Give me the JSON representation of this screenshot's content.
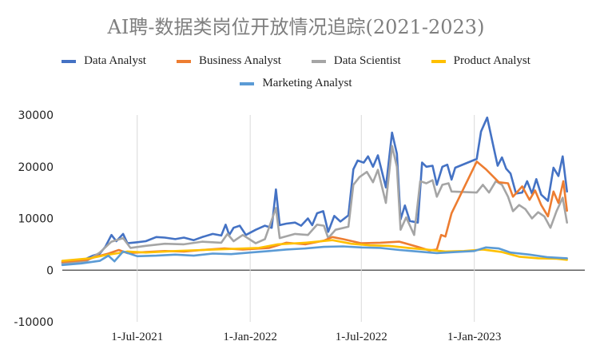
{
  "chart_data": {
    "type": "line",
    "title": "AI聘-数据类岗位开放情况追踪(2021-2023)",
    "xlabel": "",
    "ylabel": "",
    "ylim": [
      -10000,
      30000
    ],
    "yticks": [
      "30000",
      "20000",
      "10000",
      "0",
      "-10000"
    ],
    "xticks": [
      "1-Jul-2021",
      "1-Jan-2022",
      "1-Jul-2022",
      "1-Jan-2023"
    ],
    "x_start": "2021-03-01",
    "x_end": "2023-06-30",
    "xtick_dates": [
      "2021-07-01",
      "2022-01-01",
      "2022-07-01",
      "2023-01-01"
    ],
    "grid": true,
    "legend_position": "top",
    "series": [
      {
        "name": "Data Analyst",
        "color": "#4472c4",
        "points": [
          [
            "2021-03-01",
            1400
          ],
          [
            "2021-03-20",
            1700
          ],
          [
            "2021-04-05",
            2000
          ],
          [
            "2021-04-20",
            2800
          ],
          [
            "2021-05-01",
            3200
          ],
          [
            "2021-05-10",
            4500
          ],
          [
            "2021-05-20",
            6800
          ],
          [
            "2021-05-28",
            5600
          ],
          [
            "2021-06-08",
            7000
          ],
          [
            "2021-06-15",
            5200
          ],
          [
            "2021-07-01",
            5400
          ],
          [
            "2021-07-15",
            5600
          ],
          [
            "2021-08-01",
            6400
          ],
          [
            "2021-08-15",
            6300
          ],
          [
            "2021-09-01",
            6000
          ],
          [
            "2021-09-15",
            6300
          ],
          [
            "2021-10-01",
            5800
          ],
          [
            "2021-10-15",
            6400
          ],
          [
            "2021-11-01",
            7000
          ],
          [
            "2021-11-15",
            6700
          ],
          [
            "2021-11-22",
            8800
          ],
          [
            "2021-11-28",
            6800
          ],
          [
            "2021-12-05",
            8200
          ],
          [
            "2021-12-15",
            8600
          ],
          [
            "2021-12-25",
            6800
          ],
          [
            "2022-01-10",
            7800
          ],
          [
            "2022-01-25",
            8600
          ],
          [
            "2022-02-05",
            8200
          ],
          [
            "2022-02-12",
            15600
          ],
          [
            "2022-02-18",
            8700
          ],
          [
            "2022-03-01",
            9000
          ],
          [
            "2022-03-15",
            9200
          ],
          [
            "2022-03-25",
            8600
          ],
          [
            "2022-04-05",
            10000
          ],
          [
            "2022-04-12",
            8700
          ],
          [
            "2022-04-20",
            11000
          ],
          [
            "2022-04-30",
            11400
          ],
          [
            "2022-05-08",
            7400
          ],
          [
            "2022-05-18",
            10500
          ],
          [
            "2022-05-28",
            9400
          ],
          [
            "2022-06-10",
            10600
          ],
          [
            "2022-06-18",
            19500
          ],
          [
            "2022-06-25",
            21200
          ],
          [
            "2022-07-05",
            20800
          ],
          [
            "2022-07-12",
            22000
          ],
          [
            "2022-07-20",
            20000
          ],
          [
            "2022-07-28",
            22200
          ],
          [
            "2022-08-10",
            16000
          ],
          [
            "2022-08-20",
            26600
          ],
          [
            "2022-08-28",
            22500
          ],
          [
            "2022-09-03",
            9800
          ],
          [
            "2022-09-10",
            12500
          ],
          [
            "2022-09-18",
            9500
          ],
          [
            "2022-10-01",
            9200
          ],
          [
            "2022-10-08",
            20800
          ],
          [
            "2022-10-15",
            20000
          ],
          [
            "2022-10-25",
            20200
          ],
          [
            "2022-11-01",
            16500
          ],
          [
            "2022-11-10",
            20000
          ],
          [
            "2022-11-18",
            20400
          ],
          [
            "2022-11-25",
            17500
          ],
          [
            "2022-12-01",
            19800
          ],
          [
            "2023-01-05",
            21500
          ],
          [
            "2023-01-12",
            26800
          ],
          [
            "2023-01-22",
            29500
          ],
          [
            "2023-02-01",
            24000
          ],
          [
            "2023-02-08",
            20200
          ],
          [
            "2023-02-15",
            21800
          ],
          [
            "2023-02-22",
            19600
          ],
          [
            "2023-03-01",
            18700
          ],
          [
            "2023-03-10",
            14800
          ],
          [
            "2023-03-20",
            15000
          ],
          [
            "2023-03-28",
            17200
          ],
          [
            "2023-04-05",
            14800
          ],
          [
            "2023-04-12",
            17600
          ],
          [
            "2023-04-20",
            14600
          ],
          [
            "2023-05-01",
            13400
          ],
          [
            "2023-05-10",
            19800
          ],
          [
            "2023-05-18",
            18200
          ],
          [
            "2023-05-25",
            22000
          ],
          [
            "2023-06-01",
            15200
          ]
        ]
      },
      {
        "name": "Business Analyst",
        "color": "#ed7d31",
        "points": [
          [
            "2021-03-01",
            1600
          ],
          [
            "2021-04-10",
            2000
          ],
          [
            "2021-04-25",
            2600
          ],
          [
            "2021-05-15",
            3200
          ],
          [
            "2021-06-01",
            3900
          ],
          [
            "2021-06-15",
            3300
          ],
          [
            "2021-07-15",
            3500
          ],
          [
            "2021-08-15",
            3700
          ],
          [
            "2021-09-15",
            3600
          ],
          [
            "2021-10-15",
            3900
          ],
          [
            "2021-11-20",
            4200
          ],
          [
            "2021-12-20",
            4000
          ],
          [
            "2022-02-01",
            4300
          ],
          [
            "2022-03-01",
            5300
          ],
          [
            "2022-04-01",
            5000
          ],
          [
            "2022-05-01",
            5700
          ],
          [
            "2022-05-15",
            6400
          ],
          [
            "2022-06-01",
            6000
          ],
          [
            "2022-07-01",
            5200
          ],
          [
            "2022-08-01",
            5300
          ],
          [
            "2022-09-01",
            5500
          ],
          [
            "2022-10-01",
            4500
          ],
          [
            "2022-10-20",
            3800
          ],
          [
            "2022-11-01",
            4000
          ],
          [
            "2022-11-08",
            6800
          ],
          [
            "2022-11-15",
            6500
          ],
          [
            "2022-11-25",
            11000
          ],
          [
            "2023-01-05",
            21000
          ],
          [
            "2023-01-20",
            19500
          ],
          [
            "2023-02-10",
            17000
          ],
          [
            "2023-02-25",
            16800
          ],
          [
            "2023-03-05",
            14200
          ],
          [
            "2023-03-20",
            16200
          ],
          [
            "2023-04-01",
            13600
          ],
          [
            "2023-04-10",
            15400
          ],
          [
            "2023-04-20",
            12600
          ],
          [
            "2023-05-01",
            10400
          ],
          [
            "2023-05-10",
            15200
          ],
          [
            "2023-05-18",
            13000
          ],
          [
            "2023-05-26",
            17200
          ],
          [
            "2023-06-01",
            11500
          ]
        ]
      },
      {
        "name": "Data Scientist",
        "color": "#a5a5a5",
        "points": [
          [
            "2021-03-01",
            1300
          ],
          [
            "2021-04-10",
            1800
          ],
          [
            "2021-05-01",
            3400
          ],
          [
            "2021-05-20",
            5500
          ],
          [
            "2021-06-08",
            6200
          ],
          [
            "2021-06-20",
            4300
          ],
          [
            "2021-07-15",
            4700
          ],
          [
            "2021-08-15",
            5100
          ],
          [
            "2021-09-15",
            5000
          ],
          [
            "2021-10-15",
            5500
          ],
          [
            "2021-11-15",
            5300
          ],
          [
            "2021-11-25",
            7000
          ],
          [
            "2021-12-05",
            5600
          ],
          [
            "2021-12-20",
            6800
          ],
          [
            "2022-01-10",
            5200
          ],
          [
            "2022-01-25",
            6000
          ],
          [
            "2022-02-12",
            12000
          ],
          [
            "2022-02-18",
            6200
          ],
          [
            "2022-03-15",
            7000
          ],
          [
            "2022-04-05",
            6800
          ],
          [
            "2022-04-20",
            8800
          ],
          [
            "2022-05-01",
            8600
          ],
          [
            "2022-05-08",
            6200
          ],
          [
            "2022-05-20",
            7800
          ],
          [
            "2022-06-10",
            8400
          ],
          [
            "2022-06-18",
            16500
          ],
          [
            "2022-06-28",
            18000
          ],
          [
            "2022-07-10",
            19000
          ],
          [
            "2022-07-20",
            17000
          ],
          [
            "2022-07-28",
            19400
          ],
          [
            "2022-08-10",
            13000
          ],
          [
            "2022-08-20",
            24000
          ],
          [
            "2022-08-28",
            20000
          ],
          [
            "2022-09-03",
            7800
          ],
          [
            "2022-09-12",
            10200
          ],
          [
            "2022-09-25",
            6800
          ],
          [
            "2022-10-05",
            17200
          ],
          [
            "2022-10-15",
            16800
          ],
          [
            "2022-10-25",
            17400
          ],
          [
            "2022-11-01",
            14200
          ],
          [
            "2022-11-10",
            16500
          ],
          [
            "2022-11-20",
            16800
          ],
          [
            "2022-11-25",
            15200
          ],
          [
            "2023-01-05",
            15000
          ],
          [
            "2023-01-15",
            16500
          ],
          [
            "2023-01-25",
            15000
          ],
          [
            "2023-02-05",
            17200
          ],
          [
            "2023-02-15",
            16500
          ],
          [
            "2023-02-25",
            14200
          ],
          [
            "2023-03-05",
            11400
          ],
          [
            "2023-03-15",
            12600
          ],
          [
            "2023-03-25",
            11800
          ],
          [
            "2023-04-05",
            10000
          ],
          [
            "2023-04-15",
            11200
          ],
          [
            "2023-04-25",
            10400
          ],
          [
            "2023-05-05",
            8200
          ],
          [
            "2023-05-15",
            11400
          ],
          [
            "2023-05-25",
            14000
          ],
          [
            "2023-06-01",
            9200
          ]
        ]
      },
      {
        "name": "Product Analyst",
        "color": "#ffc000",
        "points": [
          [
            "2021-03-01",
            1800
          ],
          [
            "2021-04-15",
            2300
          ],
          [
            "2021-05-10",
            2900
          ],
          [
            "2021-06-01",
            3300
          ],
          [
            "2021-06-15",
            3600
          ],
          [
            "2021-07-15",
            3400
          ],
          [
            "2021-09-01",
            3700
          ],
          [
            "2021-10-15",
            3900
          ],
          [
            "2021-12-01",
            4100
          ],
          [
            "2022-01-15",
            4300
          ],
          [
            "2022-02-15",
            5000
          ],
          [
            "2022-04-01",
            5300
          ],
          [
            "2022-05-15",
            5800
          ],
          [
            "2022-06-15",
            5100
          ],
          [
            "2022-07-15",
            4800
          ],
          [
            "2022-08-15",
            4700
          ],
          [
            "2022-09-15",
            4300
          ],
          [
            "2022-10-15",
            4000
          ],
          [
            "2022-11-15",
            3600
          ],
          [
            "2022-12-15",
            3700
          ],
          [
            "2023-01-15",
            4000
          ],
          [
            "2023-02-15",
            3500
          ],
          [
            "2023-03-15",
            2600
          ],
          [
            "2023-04-15",
            2300
          ],
          [
            "2023-05-15",
            2200
          ],
          [
            "2023-06-01",
            2000
          ]
        ]
      },
      {
        "name": "Marketing Analyst",
        "color": "#5b9bd5",
        "points": [
          [
            "2021-03-01",
            1000
          ],
          [
            "2021-04-01",
            1300
          ],
          [
            "2021-05-01",
            1800
          ],
          [
            "2021-05-15",
            2800
          ],
          [
            "2021-05-25",
            1700
          ],
          [
            "2021-06-08",
            3600
          ],
          [
            "2021-07-01",
            2700
          ],
          [
            "2021-08-01",
            2800
          ],
          [
            "2021-09-01",
            3000
          ],
          [
            "2021-10-01",
            2800
          ],
          [
            "2021-11-01",
            3200
          ],
          [
            "2021-12-01",
            3100
          ],
          [
            "2022-01-01",
            3400
          ],
          [
            "2022-02-01",
            3700
          ],
          [
            "2022-03-01",
            4000
          ],
          [
            "2022-04-01",
            4200
          ],
          [
            "2022-05-01",
            4500
          ],
          [
            "2022-06-01",
            4600
          ],
          [
            "2022-07-01",
            4400
          ],
          [
            "2022-08-01",
            4300
          ],
          [
            "2022-09-01",
            3900
          ],
          [
            "2022-10-01",
            3600
          ],
          [
            "2022-11-01",
            3300
          ],
          [
            "2022-12-01",
            3500
          ],
          [
            "2023-01-01",
            3700
          ],
          [
            "2023-01-20",
            4400
          ],
          [
            "2023-02-10",
            4200
          ],
          [
            "2023-03-01",
            3400
          ],
          [
            "2023-04-01",
            3000
          ],
          [
            "2023-05-01",
            2500
          ],
          [
            "2023-06-01",
            2300
          ]
        ]
      }
    ]
  }
}
